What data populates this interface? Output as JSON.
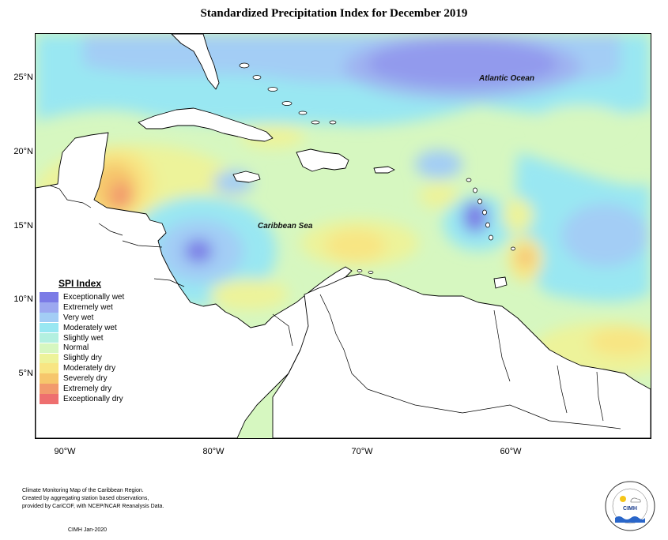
{
  "title": "Standardized Precipitation Index for December 2019",
  "axes": {
    "lat_labels": [
      "25°N",
      "20°N",
      "15°N",
      "10°N",
      "5°N"
    ],
    "lon_labels": [
      "90°W",
      "80°W",
      "70°W",
      "60°W"
    ]
  },
  "map_labels": {
    "atlantic": "Atlantic Ocean",
    "caribbean": "Caribbean Sea"
  },
  "legend": {
    "title": "SPI Index",
    "items": [
      {
        "label": "Exceptionally wet",
        "color": "#7b7be6"
      },
      {
        "label": "Extremely wet",
        "color": "#9ca8f0"
      },
      {
        "label": "Very wet",
        "color": "#a3cdf5"
      },
      {
        "label": "Moderately wet",
        "color": "#99e7f2"
      },
      {
        "label": "Slightly wet",
        "color": "#b3f0e0"
      },
      {
        "label": "Normal",
        "color": "#d6f7c0"
      },
      {
        "label": "Slightly dry",
        "color": "#edf39a"
      },
      {
        "label": "Moderately dry",
        "color": "#f8e583"
      },
      {
        "label": "Severely dry",
        "color": "#f6c66c"
      },
      {
        "label": "Extremely dry",
        "color": "#f29a6d"
      },
      {
        "label": "Exceptionally dry",
        "color": "#ee6f6f"
      }
    ]
  },
  "footer": {
    "lines": [
      "Climate Monitoring Map of the Caribbean Region.",
      "Created by aggregating station based observations,",
      "provided by CariCOF, with NCEP/NCAR Reanalysis Data."
    ],
    "credit": "CIMH Jan-2020"
  },
  "logo": {
    "text": "CIMH"
  }
}
